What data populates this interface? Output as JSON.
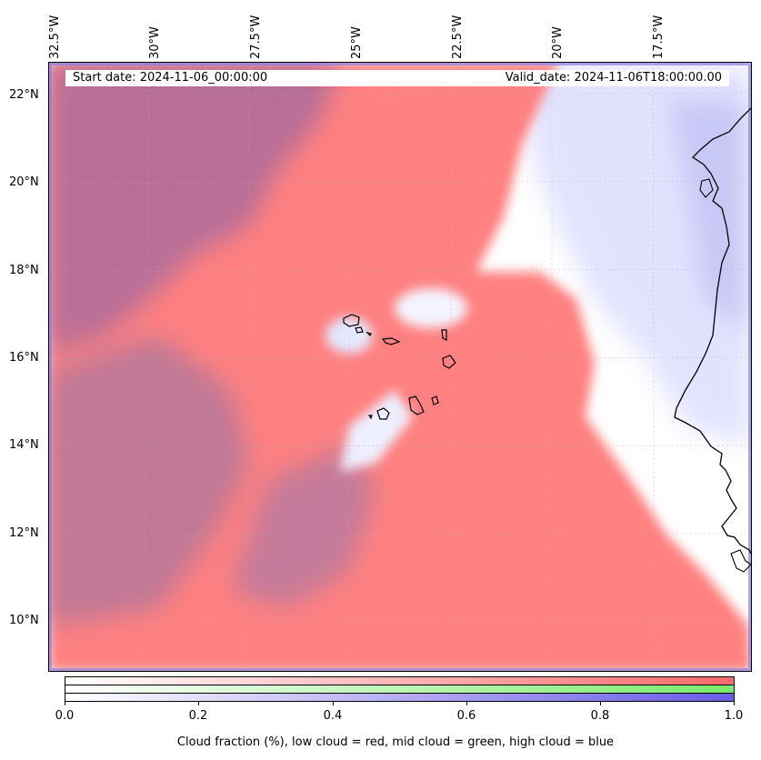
{
  "longitude_labels": [
    "32.5°W",
    "30°W",
    "27.5°W",
    "25°W",
    "22.5°W",
    "20°W",
    "17.5°W"
  ],
  "latitude_labels": [
    "22°N",
    "20°N",
    "18°N",
    "16°N",
    "14°N",
    "12°N",
    "10°N"
  ],
  "info": {
    "start_date": "Start date: 2024-11-06_00:00:00",
    "valid_date": "Valid_date: 2024-11-06T18:00:00.00"
  },
  "colorbar": {
    "ticks": [
      "0.0",
      "0.2",
      "0.4",
      "0.6",
      "0.8",
      "1.0"
    ],
    "label": "Cloud fraction (%), low cloud = red, mid cloud = green, high cloud = blue",
    "colors": {
      "low": "#ff6a6a",
      "mid": "#7aeb6a",
      "high": "#6a5ae6"
    }
  },
  "map_colors": {
    "low_cloud": "#ff8080",
    "high_cloud": "#8e84e8",
    "overlap": "#c07090",
    "clear": "#ffffff",
    "coast": "#000000"
  }
}
